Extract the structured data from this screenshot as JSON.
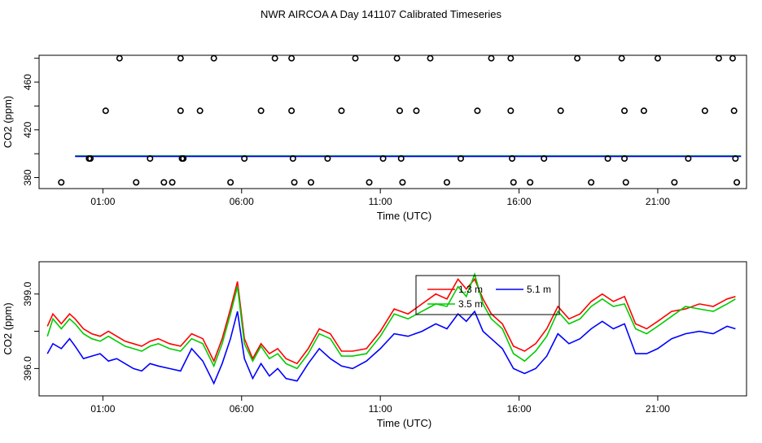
{
  "title": "NWR AIRCOA A  Day 141107  Calibrated Timeseries",
  "colors": {
    "red": "#ff0000",
    "green": "#00cc00",
    "blue": "#0000ff",
    "axis": "#000000"
  },
  "chart_data": [
    {
      "type": "scatter",
      "ylabel": "CO2 (ppm)",
      "xlabel": "Time (UTC)",
      "x_unit": "hours UTC",
      "xlim": [
        -1.3,
        24.2
      ],
      "ylim": [
        370.8,
        482.5
      ],
      "x_tick_labels": [
        "01:00",
        "06:00",
        "11:00",
        "16:00",
        "21:00"
      ],
      "x_tick_values": [
        1,
        6,
        11,
        16,
        21
      ],
      "y_tick_labels": [
        "380",
        "420",
        "460"
      ],
      "y_tick_values": [
        380,
        420,
        460
      ],
      "y_minor_ticks": [
        400,
        440,
        480
      ],
      "points_x": [
        -0.5,
        0.5,
        0.55,
        1.1,
        1.6,
        2.2,
        2.7,
        3.2,
        3.5,
        3.8,
        3.8,
        3.85,
        3.9,
        4.5,
        5.0,
        5.6,
        6.1,
        6.7,
        7.2,
        7.8,
        7.8,
        7.85,
        7.9,
        8.5,
        9.1,
        9.6,
        10.1,
        10.6,
        11.1,
        11.6,
        11.7,
        11.75,
        11.8,
        12.3,
        12.8,
        13.4,
        13.9,
        14.5,
        15.0,
        15.7,
        15.7,
        15.75,
        15.8,
        16.4,
        16.9,
        17.5,
        18.1,
        18.6,
        19.2,
        19.7,
        19.8,
        19.8,
        19.85,
        20.5,
        21.0,
        21.6,
        22.1,
        22.7,
        23.2,
        23.7,
        23.75,
        23.8,
        23.85
      ],
      "points_y": [
        376,
        396,
        396,
        436,
        480,
        376,
        396,
        376,
        376,
        480,
        436,
        396,
        396,
        436,
        480,
        376,
        396,
        436,
        480,
        480,
        436,
        396,
        376,
        376,
        396,
        436,
        480,
        376,
        396,
        480,
        436,
        396,
        376,
        436,
        480,
        376,
        396,
        436,
        480,
        480,
        436,
        396,
        376,
        376,
        396,
        436,
        480,
        376,
        396,
        480,
        436,
        396,
        376,
        436,
        480,
        376,
        396,
        436,
        480,
        480,
        436,
        396,
        376
      ],
      "series": [
        {
          "color": "red",
          "x": [
            0,
            24
          ],
          "y": [
            398.0,
            398.0
          ]
        },
        {
          "color": "green",
          "x": [
            0,
            24
          ],
          "y": [
            398.2,
            398.2
          ]
        },
        {
          "color": "blue",
          "x": [
            0,
            24
          ],
          "y": [
            397.8,
            397.8
          ]
        }
      ]
    },
    {
      "type": "line",
      "ylabel": "CO2 (ppm)",
      "xlabel": "Time (UTC)",
      "x_unit": "hours UTC",
      "xlim": [
        -1.3,
        24.2
      ],
      "ylim": [
        394.9,
        400.3
      ],
      "x_tick_labels": [
        "01:00",
        "06:00",
        "11:00",
        "16:00",
        "21:00"
      ],
      "x_tick_values": [
        1,
        6,
        11,
        16,
        21
      ],
      "y_tick_labels": [
        "396.0",
        "399.0"
      ],
      "y_tick_values": [
        396.0,
        399.0
      ],
      "y_minor_ticks": [
        397.5
      ],
      "legend": {
        "placement": "top-center",
        "entries": [
          {
            "label": "1.3 m",
            "color": "red"
          },
          {
            "label": "5.1 m",
            "color": "blue"
          },
          {
            "label": "3.5 m",
            "color": "green"
          }
        ]
      },
      "series": [
        {
          "name": "1.3 m",
          "color": "red",
          "x": [
            -1.0,
            -0.8,
            -0.5,
            -0.2,
            0.0,
            0.3,
            0.6,
            0.9,
            1.2,
            1.5,
            1.8,
            2.1,
            2.4,
            2.7,
            3.0,
            3.4,
            3.8,
            4.2,
            4.6,
            5.0,
            5.3,
            5.6,
            5.85,
            6.1,
            6.4,
            6.7,
            7.0,
            7.3,
            7.6,
            8.0,
            8.4,
            8.8,
            9.2,
            9.6,
            10.0,
            10.5,
            11.0,
            11.5,
            12.0,
            12.5,
            13.0,
            13.4,
            13.8,
            14.1,
            14.4,
            14.7,
            15.0,
            15.4,
            15.8,
            16.2,
            16.6,
            17.0,
            17.4,
            17.8,
            18.2,
            18.6,
            19.0,
            19.4,
            19.8,
            20.2,
            20.6,
            21.0,
            21.5,
            22.0,
            22.5,
            23.0,
            23.5,
            23.8
          ],
          "y": [
            397.7,
            398.2,
            397.8,
            398.2,
            398.0,
            397.6,
            397.4,
            397.3,
            397.5,
            397.3,
            397.1,
            397.0,
            396.9,
            397.1,
            397.2,
            397.0,
            396.9,
            397.4,
            397.2,
            396.3,
            397.2,
            398.4,
            399.5,
            397.2,
            396.4,
            397.0,
            396.6,
            396.8,
            396.4,
            396.2,
            396.8,
            397.6,
            397.4,
            396.7,
            396.7,
            396.8,
            397.5,
            398.4,
            398.2,
            398.6,
            399.0,
            398.8,
            399.6,
            399.2,
            399.6,
            398.8,
            398.2,
            397.8,
            396.9,
            396.7,
            397.0,
            397.6,
            398.5,
            398.0,
            398.2,
            398.7,
            399.0,
            398.7,
            398.9,
            397.8,
            397.6,
            397.9,
            398.3,
            398.4,
            398.6,
            398.5,
            398.8,
            398.9
          ]
        },
        {
          "name": "5.1 m",
          "color": "blue",
          "x": [
            -1.0,
            -0.8,
            -0.5,
            -0.2,
            0.0,
            0.3,
            0.6,
            0.9,
            1.2,
            1.5,
            1.8,
            2.1,
            2.4,
            2.7,
            3.0,
            3.4,
            3.8,
            4.2,
            4.6,
            5.0,
            5.3,
            5.6,
            5.85,
            6.1,
            6.4,
            6.7,
            7.0,
            7.3,
            7.6,
            8.0,
            8.4,
            8.8,
            9.2,
            9.6,
            10.0,
            10.5,
            11.0,
            11.5,
            12.0,
            12.5,
            13.0,
            13.4,
            13.8,
            14.1,
            14.4,
            14.7,
            15.0,
            15.4,
            15.8,
            16.2,
            16.6,
            17.0,
            17.4,
            17.8,
            18.2,
            18.6,
            19.0,
            19.4,
            19.8,
            20.2,
            20.6,
            21.0,
            21.5,
            22.0,
            22.5,
            23.0,
            23.5,
            23.8
          ],
          "y": [
            396.6,
            397.0,
            396.8,
            397.2,
            396.9,
            396.4,
            396.5,
            396.6,
            396.3,
            396.4,
            396.2,
            396.0,
            395.9,
            396.2,
            396.1,
            396.0,
            395.9,
            396.8,
            396.3,
            395.4,
            396.2,
            397.2,
            398.3,
            396.4,
            395.6,
            396.2,
            395.7,
            396.0,
            395.6,
            395.5,
            396.2,
            396.8,
            396.4,
            396.1,
            396.0,
            396.3,
            396.8,
            397.4,
            397.3,
            397.5,
            397.8,
            397.6,
            398.2,
            397.9,
            398.3,
            397.5,
            397.2,
            396.8,
            396.0,
            395.8,
            396.0,
            396.5,
            397.4,
            397.0,
            397.2,
            397.6,
            397.9,
            397.6,
            397.8,
            396.6,
            396.6,
            396.8,
            397.2,
            397.4,
            397.5,
            397.4,
            397.7,
            397.6
          ]
        },
        {
          "name": "3.5 m",
          "color": "green",
          "x": [
            -1.0,
            -0.8,
            -0.5,
            -0.2,
            0.0,
            0.3,
            0.6,
            0.9,
            1.2,
            1.5,
            1.8,
            2.1,
            2.4,
            2.7,
            3.0,
            3.4,
            3.8,
            4.2,
            4.6,
            5.0,
            5.3,
            5.6,
            5.85,
            6.1,
            6.4,
            6.7,
            7.0,
            7.3,
            7.6,
            8.0,
            8.4,
            8.8,
            9.2,
            9.6,
            10.0,
            10.5,
            11.0,
            11.5,
            12.0,
            12.5,
            13.0,
            13.4,
            13.8,
            14.1,
            14.4,
            14.7,
            15.0,
            15.4,
            15.8,
            16.2,
            16.6,
            17.0,
            17.4,
            17.8,
            18.2,
            18.6,
            19.0,
            19.4,
            19.8,
            20.2,
            20.6,
            21.0,
            21.5,
            22.0,
            22.5,
            23.0,
            23.5,
            23.8
          ],
          "y": [
            397.3,
            398.0,
            397.6,
            398.0,
            397.8,
            397.4,
            397.2,
            397.1,
            397.3,
            397.1,
            396.9,
            396.8,
            396.7,
            396.9,
            397.0,
            396.8,
            396.7,
            397.2,
            397.0,
            396.1,
            397.0,
            398.2,
            399.3,
            397.0,
            396.3,
            396.9,
            396.4,
            396.6,
            396.2,
            396.0,
            396.6,
            397.4,
            397.2,
            396.5,
            396.5,
            396.6,
            397.3,
            398.2,
            398.0,
            398.3,
            398.6,
            398.5,
            399.3,
            398.9,
            399.8,
            398.6,
            398.0,
            397.6,
            396.6,
            396.3,
            396.7,
            397.3,
            398.3,
            397.8,
            398.0,
            398.5,
            398.8,
            398.5,
            398.6,
            397.6,
            397.4,
            397.7,
            398.1,
            398.5,
            398.4,
            398.3,
            398.6,
            398.8
          ]
        }
      ]
    }
  ]
}
